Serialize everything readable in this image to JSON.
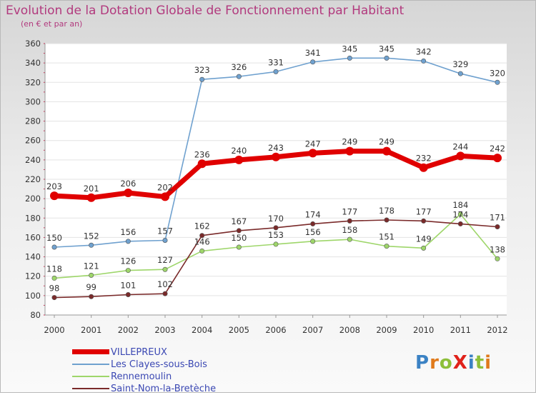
{
  "title": "Evolution de la Dotation Globale de Fonctionnement par Habitant",
  "subtitle": "(en € et par an)",
  "logo": {
    "letters": [
      {
        "ch": "P",
        "color": "#3b82c4"
      },
      {
        "ch": "r",
        "color": "#e07a1b"
      },
      {
        "ch": "o",
        "color": "#8dbf3a"
      },
      {
        "ch": "X",
        "color": "#e0221b"
      },
      {
        "ch": "i",
        "color": "#3b82c4"
      },
      {
        "ch": "t",
        "color": "#8dbf3a"
      },
      {
        "ch": "i",
        "color": "#e07a1b"
      }
    ]
  },
  "chart_data": {
    "type": "line",
    "title": "Evolution de la Dotation Globale de Fonctionnement par Habitant",
    "subtitle": "(en € et par an)",
    "xlabel": "",
    "ylabel": "",
    "x": [
      "2000",
      "2001",
      "2002",
      "2003",
      "2004",
      "2005",
      "2006",
      "2007",
      "2008",
      "2009",
      "2010",
      "2011",
      "2012"
    ],
    "ylim": [
      80,
      360
    ],
    "yticks": [
      80,
      100,
      120,
      140,
      160,
      180,
      200,
      220,
      240,
      260,
      280,
      300,
      320,
      340,
      360
    ],
    "grid": "horizontal",
    "legend": "bottom-left",
    "series": [
      {
        "name": "VILLEPREUX",
        "color": "#e00000",
        "values": [
          203,
          201,
          206,
          202,
          236,
          240,
          243,
          247,
          249,
          249,
          232,
          244,
          242
        ]
      },
      {
        "name": "Les Clayes-sous-Bois",
        "color": "#6fa1cf",
        "values": [
          150,
          152,
          156,
          157,
          323,
          326,
          331,
          341,
          345,
          345,
          342,
          329,
          320
        ]
      },
      {
        "name": "Rennemoulin",
        "color": "#9ed66a",
        "values": [
          118,
          121,
          126,
          127,
          146,
          150,
          153,
          156,
          158,
          151,
          149,
          184,
          138
        ]
      },
      {
        "name": "Saint-Nom-la-Bretèche",
        "color": "#7a2a2a",
        "values": [
          98,
          99,
          101,
          102,
          162,
          167,
          170,
          174,
          177,
          178,
          177,
          174,
          171
        ]
      }
    ]
  }
}
